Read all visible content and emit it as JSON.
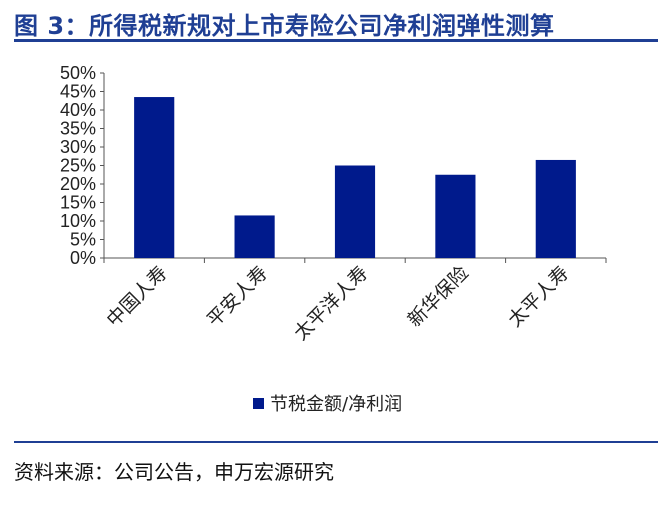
{
  "header": {
    "title": "图 3：所得税新规对上市寿险公司净利润弹性测算"
  },
  "footer": {
    "source": "资料来源：公司公告，申万宏源研究"
  },
  "colors": {
    "bar": "#001a8c",
    "accent": "#1f3f94"
  },
  "chart_data": {
    "type": "bar",
    "categories": [
      "中国人寿",
      "平安人寿",
      "太平洋人寿",
      "新华保险",
      "太平人寿"
    ],
    "series": [
      {
        "name": "节税金额/净利润",
        "values": [
          43.5,
          11.5,
          25.0,
          22.5,
          26.5
        ]
      }
    ],
    "yticks": [
      "0%",
      "5%",
      "10%",
      "15%",
      "20%",
      "25%",
      "30%",
      "35%",
      "40%",
      "45%",
      "50%"
    ],
    "ylim": [
      0,
      50
    ],
    "grid": false,
    "legend_position": "bottom"
  }
}
